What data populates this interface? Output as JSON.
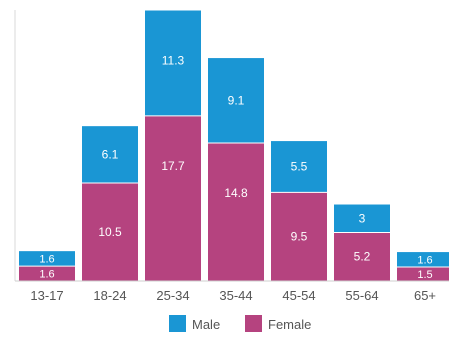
{
  "chart_data": {
    "type": "bar",
    "stacked": true,
    "categories": [
      "13-17",
      "18-24",
      "25-34",
      "35-44",
      "45-54",
      "55-64",
      "65+"
    ],
    "series": [
      {
        "name": "Female",
        "color": "#b5437f",
        "values": [
          1.6,
          10.5,
          17.7,
          14.8,
          9.5,
          5.2,
          1.5
        ]
      },
      {
        "name": "Male",
        "color": "#1a96d4",
        "values": [
          1.6,
          6.1,
          11.3,
          9.1,
          5.5,
          3,
          1.6
        ]
      }
    ],
    "data_labels": {
      "Female": [
        "1.6",
        "10.5",
        "17.7",
        "14.8",
        "9.5",
        "5.2",
        "1.5"
      ],
      "Male": [
        "1.6",
        "6.1",
        "11.3",
        "9.1",
        "5.5",
        "3",
        "1.6"
      ]
    },
    "legend": {
      "position": "bottom",
      "items": [
        {
          "label": "Male",
          "color": "#1a96d4"
        },
        {
          "label": "Female",
          "color": "#b5437f"
        }
      ]
    },
    "ylim": [
      0,
      29
    ],
    "grid": false,
    "title": "",
    "xlabel": "",
    "ylabel": ""
  }
}
